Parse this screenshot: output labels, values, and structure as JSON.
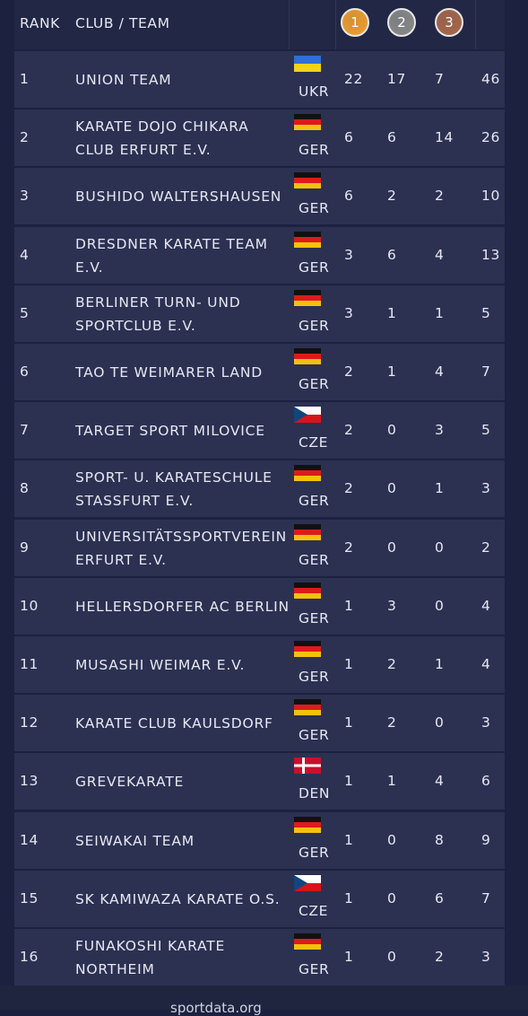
{
  "header": {
    "rank": "RANK",
    "club": "CLUB / TEAM",
    "medals": [
      {
        "label": "1",
        "color": "#f0a030"
      },
      {
        "label": "2",
        "color": "#8a8a8a"
      },
      {
        "label": "3",
        "color": "#a8694a"
      }
    ]
  },
  "rows": [
    {
      "rank": "1",
      "club": [
        "UNION TEAM"
      ],
      "country": "UKR",
      "flag": {
        "stripes": [
          "#2f6fd6",
          "#f3d21c"
        ]
      },
      "gold": "22",
      "silver": "17",
      "bronze": "7",
      "total": "46"
    },
    {
      "rank": "2",
      "club": [
        "KARATE DOJO CHIKARA",
        "CLUB ERFURT E.V."
      ],
      "country": "GER",
      "flag": {
        "stripes": [
          "#111111",
          "#dd1b1b",
          "#f4c20d"
        ]
      },
      "gold": "6",
      "silver": "6",
      "bronze": "14",
      "total": "26"
    },
    {
      "rank": "3",
      "club": [
        "BUSHIDO WALTERSHAUSEN"
      ],
      "country": "GER",
      "flag": {
        "stripes": [
          "#111111",
          "#dd1b1b",
          "#f4c20d"
        ]
      },
      "gold": "6",
      "silver": "2",
      "bronze": "2",
      "total": "10"
    },
    {
      "rank": "4",
      "club": [
        "DRESDNER KARATE TEAM",
        "E.V."
      ],
      "country": "GER",
      "flag": {
        "stripes": [
          "#111111",
          "#dd1b1b",
          "#f4c20d"
        ]
      },
      "gold": "3",
      "silver": "6",
      "bronze": "4",
      "total": "13"
    },
    {
      "rank": "5",
      "club": [
        "BERLINER TURN- UND",
        "SPORTCLUB E.V."
      ],
      "country": "GER",
      "flag": {
        "stripes": [
          "#111111",
          "#dd1b1b",
          "#f4c20d"
        ]
      },
      "gold": "3",
      "silver": "1",
      "bronze": "1",
      "total": "5"
    },
    {
      "rank": "6",
      "club": [
        "TAO TE WEIMARER LAND"
      ],
      "country": "GER",
      "flag": {
        "stripes": [
          "#111111",
          "#dd1b1b",
          "#f4c20d"
        ]
      },
      "gold": "2",
      "silver": "1",
      "bronze": "4",
      "total": "7"
    },
    {
      "rank": "7",
      "club": [
        "TARGET SPORT MILOVICE"
      ],
      "country": "CZE",
      "flag": {
        "stripes": [
          "#ffffff",
          "#d7141a"
        ],
        "triangle": "#11457e"
      },
      "gold": "2",
      "silver": "0",
      "bronze": "3",
      "total": "5"
    },
    {
      "rank": "8",
      "club": [
        "SPORT- U. KARATESCHULE",
        "STASSFURT E.V."
      ],
      "country": "GER",
      "flag": {
        "stripes": [
          "#111111",
          "#dd1b1b",
          "#f4c20d"
        ]
      },
      "gold": "2",
      "silver": "0",
      "bronze": "1",
      "total": "3"
    },
    {
      "rank": "9",
      "club": [
        "UNIVERSITÄTSSPORTVEREIN",
        "ERFURT E.V."
      ],
      "country": "GER",
      "flag": {
        "stripes": [
          "#111111",
          "#dd1b1b",
          "#f4c20d"
        ]
      },
      "gold": "2",
      "silver": "0",
      "bronze": "0",
      "total": "2"
    },
    {
      "rank": "10",
      "club": [
        "HELLERSDORFER AC BERLIN"
      ],
      "country": "GER",
      "flag": {
        "stripes": [
          "#111111",
          "#dd1b1b",
          "#f4c20d"
        ]
      },
      "gold": "1",
      "silver": "3",
      "bronze": "0",
      "total": "4"
    },
    {
      "rank": "11",
      "club": [
        "MUSASHI WEIMAR E.V."
      ],
      "country": "GER",
      "flag": {
        "stripes": [
          "#111111",
          "#dd1b1b",
          "#f4c20d"
        ]
      },
      "gold": "1",
      "silver": "2",
      "bronze": "1",
      "total": "4"
    },
    {
      "rank": "12",
      "club": [
        "KARATE CLUB KAULSDORF"
      ],
      "country": "GER",
      "flag": {
        "stripes": [
          "#111111",
          "#dd1b1b",
          "#f4c20d"
        ]
      },
      "gold": "1",
      "silver": "2",
      "bronze": "0",
      "total": "3"
    },
    {
      "rank": "13",
      "club": [
        "GREVEKARATE"
      ],
      "country": "DEN",
      "flag": {
        "stripes": [
          "#c8102e"
        ],
        "cross": "#ffffff"
      },
      "gold": "1",
      "silver": "1",
      "bronze": "4",
      "total": "6"
    },
    {
      "rank": "14",
      "club": [
        "SEIWAKAI TEAM"
      ],
      "country": "GER",
      "flag": {
        "stripes": [
          "#111111",
          "#dd1b1b",
          "#f4c20d"
        ]
      },
      "gold": "1",
      "silver": "0",
      "bronze": "8",
      "total": "9"
    },
    {
      "rank": "15",
      "club": [
        "SK KAMIWAZA KARATE O.S."
      ],
      "country": "CZE",
      "flag": {
        "stripes": [
          "#ffffff",
          "#d7141a"
        ],
        "triangle": "#11457e"
      },
      "gold": "1",
      "silver": "0",
      "bronze": "6",
      "total": "7"
    },
    {
      "rank": "16",
      "club": [
        "FUNAKOSHI KARATE",
        "NORTHEIM"
      ],
      "country": "GER",
      "flag": {
        "stripes": [
          "#111111",
          "#dd1b1b",
          "#f4c20d"
        ]
      },
      "gold": "1",
      "silver": "0",
      "bronze": "2",
      "total": "3"
    }
  ],
  "footer": "sportdata.org"
}
